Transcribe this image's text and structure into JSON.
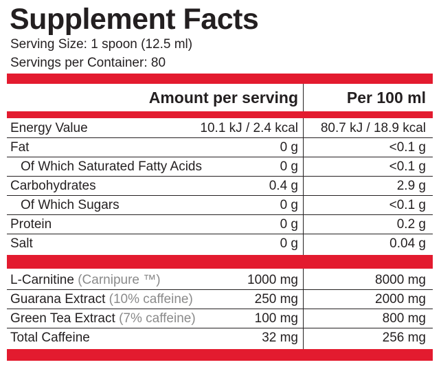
{
  "title": "Supplement Facts",
  "serving_size": "Serving Size: 1 spoon (12.5 ml)",
  "servings_per_container": "Servings per Container: 80",
  "columns": {
    "amount": "Amount per serving",
    "per100": "Per 100 ml"
  },
  "nutrients": [
    {
      "name": "Energy Value",
      "amount": "10.1 kJ / 2.4 kcal",
      "per100": "80.7 kJ / 18.9 kcal",
      "indent": false
    },
    {
      "name": "Fat",
      "amount": "0 g",
      "per100": "<0.1 g",
      "indent": false
    },
    {
      "name": "Of Which Saturated Fatty Acids",
      "amount": "0 g",
      "per100": "<0.1 g",
      "indent": true
    },
    {
      "name": "Carbohydrates",
      "amount": "0.4 g",
      "per100": "2.9 g",
      "indent": false
    },
    {
      "name": "Of Which Sugars",
      "amount": "0 g",
      "per100": "<0.1 g",
      "indent": true
    },
    {
      "name": "Protein",
      "amount": "0 g",
      "per100": "0.2 g",
      "indent": false
    },
    {
      "name": "Salt",
      "amount": "0 g",
      "per100": "0.04 g",
      "indent": false
    }
  ],
  "actives": [
    {
      "name": "L-Carnitine",
      "note": "(Carnipure ™)",
      "amount": "1000 mg",
      "per100": "8000 mg"
    },
    {
      "name": "Guarana Extract",
      "note": "(10% caffeine)",
      "amount": "250 mg",
      "per100": "2000 mg"
    },
    {
      "name": "Green Tea Extract",
      "note": "(7% caffeine)",
      "amount": "100 mg",
      "per100": "800 mg"
    },
    {
      "name": "Total Caffeine",
      "note": "",
      "amount": "32 mg",
      "per100": "256 mg"
    }
  ],
  "colors": {
    "band": "#e31b2f",
    "text": "#231f20",
    "note": "#8a8a8a"
  }
}
